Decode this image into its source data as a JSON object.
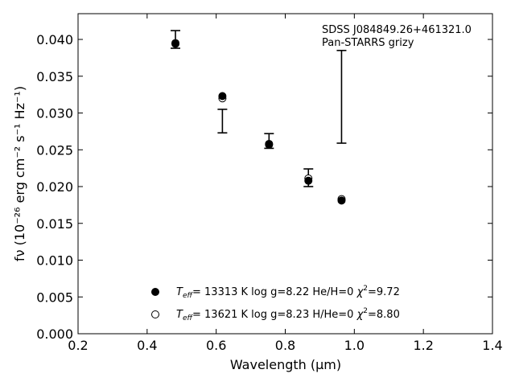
{
  "chart_data": {
    "type": "scatter",
    "xlabel": "Wavelength (μm)",
    "ylabel": "fν (10⁻²⁶ erg cm⁻² s⁻¹ Hz⁻¹)",
    "xlim": [
      0.2,
      1.4
    ],
    "ylim": [
      0.0,
      0.0435
    ],
    "xticks": [
      "0.2",
      "0.4",
      "0.6",
      "0.8",
      "1.0",
      "1.2",
      "1.4"
    ],
    "yticks": [
      "0.000",
      "0.005",
      "0.010",
      "0.015",
      "0.020",
      "0.025",
      "0.030",
      "0.035",
      "0.040"
    ],
    "grid": false,
    "annotations": [
      "SDSS J084849.26+461321.0",
      "Pan-STARRS grizy"
    ],
    "observed": {
      "x": [
        0.482,
        0.618,
        0.753,
        0.867,
        0.963
      ],
      "y": [
        0.04,
        0.0289,
        0.0262,
        0.0212,
        0.0322
      ],
      "yerr": [
        0.0012,
        0.0016,
        0.001,
        0.0012,
        0.0063
      ]
    },
    "series": [
      {
        "marker": "filled",
        "x": [
          0.482,
          0.618,
          0.753,
          0.867,
          0.963
        ],
        "y": [
          0.0394,
          0.0323,
          0.0257,
          0.0208,
          0.0181
        ],
        "label_parts": {
          "t": "T",
          "sub": "eff",
          "rest": "= 13313 K  log g=8.22  He/H=0  ",
          "chi": "χ",
          "sup": "2",
          "val": "=9.72"
        }
      },
      {
        "marker": "open",
        "x": [
          0.482,
          0.618,
          0.753,
          0.867,
          0.963
        ],
        "y": [
          0.0395,
          0.032,
          0.0258,
          0.0211,
          0.0183
        ],
        "label_parts": {
          "t": "T",
          "sub": "eff",
          "rest": "= 13621 K  log g=8.23  H/He=0  ",
          "chi": "χ",
          "sup": "2",
          "val": "=8.80"
        }
      }
    ]
  }
}
